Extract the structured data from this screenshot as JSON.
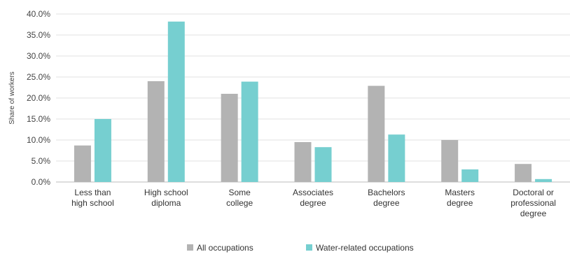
{
  "chart_data": {
    "type": "bar",
    "categories": [
      [
        "Less than",
        "high school"
      ],
      [
        "High school",
        "diploma"
      ],
      [
        "Some",
        "college"
      ],
      [
        "Associates",
        "degree"
      ],
      [
        "Bachelors",
        "degree"
      ],
      [
        "Masters",
        "degree"
      ],
      [
        "Doctoral or",
        "professional",
        "degree"
      ]
    ],
    "series": [
      {
        "name": "All occupations",
        "color": "#b3b3b3",
        "values": [
          8.7,
          24.0,
          21.0,
          9.5,
          22.9,
          10.0,
          4.3
        ]
      },
      {
        "name": "Water-related occupations",
        "color": "#76cfd0",
        "values": [
          15.0,
          38.2,
          23.9,
          8.3,
          11.3,
          3.0,
          0.7
        ]
      }
    ],
    "ylabel": "Share of workers",
    "xlabel": "",
    "ylim": [
      0,
      40
    ],
    "yticks": [
      "0.0%",
      "5.0%",
      "10.0%",
      "15.0%",
      "20.0%",
      "25.0%",
      "30.0%",
      "35.0%",
      "40.0%"
    ],
    "grid": true,
    "legend_position": "bottom"
  }
}
